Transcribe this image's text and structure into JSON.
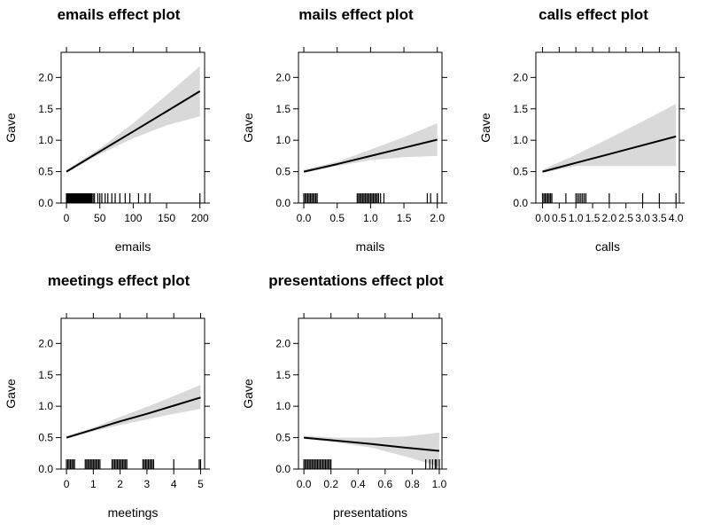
{
  "chart_data": [
    {
      "type": "line",
      "title": "emails effect plot",
      "xlabel": "emails",
      "ylabel": "Gave",
      "xlim": [
        -8,
        207
      ],
      "ylim": [
        0,
        2.4
      ],
      "xticks": [
        0,
        50,
        100,
        150,
        200
      ],
      "xtick_labels": [
        "0",
        "50",
        "100",
        "150",
        "200"
      ],
      "yticks": [
        0,
        0.5,
        1.0,
        1.5,
        2.0
      ],
      "ytick_labels": [
        "0.0",
        "0.5",
        "1.0",
        "1.5",
        "2.0"
      ],
      "x": [
        0,
        50,
        100,
        150,
        200
      ],
      "y": [
        0.5,
        0.82,
        1.14,
        1.46,
        1.78
      ],
      "lower": [
        0.48,
        0.78,
        1.03,
        1.24,
        1.38
      ],
      "upper": [
        0.53,
        0.87,
        1.27,
        1.72,
        2.18
      ],
      "rug": [
        0,
        1,
        2,
        3,
        4,
        5,
        6,
        7,
        8,
        9,
        10,
        11,
        12,
        13,
        14,
        15,
        16,
        17,
        18,
        19,
        20,
        21,
        22,
        23,
        24,
        25,
        26,
        27,
        28,
        29,
        30,
        31,
        32,
        33,
        34,
        35,
        36,
        37,
        38,
        40,
        42,
        47,
        50,
        53,
        58,
        62,
        68,
        73,
        80,
        88,
        95,
        108,
        118,
        125,
        200
      ]
    },
    {
      "type": "line",
      "title": "mails effect plot",
      "xlabel": "mails",
      "ylabel": "Gave",
      "xlim": [
        -0.08,
        2.07
      ],
      "ylim": [
        0,
        2.4
      ],
      "xticks": [
        0,
        0.5,
        1.0,
        1.5,
        2.0
      ],
      "xtick_labels": [
        "0.0",
        "0.5",
        "1.0",
        "1.5",
        "2.0"
      ],
      "yticks": [
        0,
        0.5,
        1.0,
        1.5,
        2.0
      ],
      "ytick_labels": [
        "0.0",
        "0.5",
        "1.0",
        "1.5",
        "2.0"
      ],
      "x": [
        0,
        0.5,
        1.0,
        1.5,
        2.0
      ],
      "y": [
        0.5,
        0.62,
        0.75,
        0.88,
        1.01
      ],
      "lower": [
        0.48,
        0.59,
        0.68,
        0.73,
        0.75
      ],
      "upper": [
        0.53,
        0.66,
        0.85,
        1.05,
        1.27
      ],
      "rug": [
        0,
        0.02,
        0.04,
        0.06,
        0.08,
        0.1,
        0.12,
        0.14,
        0.16,
        0.18,
        0.2,
        0.8,
        0.82,
        0.84,
        0.86,
        0.88,
        0.9,
        0.92,
        0.94,
        0.96,
        0.98,
        1.0,
        1.02,
        1.04,
        1.06,
        1.08,
        1.1,
        1.12,
        1.15,
        1.2,
        1.85,
        1.9,
        2.0
      ]
    },
    {
      "type": "line",
      "title": "calls effect plot",
      "xlabel": "calls",
      "ylabel": "Gave",
      "xlim": [
        -0.2,
        4.1
      ],
      "ylim": [
        0,
        2.4
      ],
      "xticks": [
        0,
        0.5,
        1.0,
        1.5,
        2.0,
        2.5,
        3.0,
        3.5,
        4.0
      ],
      "xtick_labels": [
        "0.0",
        "0.5",
        "1.0",
        "1.5",
        "2.0",
        "2.5",
        "3.0",
        "3.5",
        "4.0"
      ],
      "yticks": [
        0,
        0.5,
        1.0,
        1.5,
        2.0
      ],
      "ytick_labels": [
        "0.0",
        "0.5",
        "1.0",
        "1.5",
        "2.0"
      ],
      "x": [
        0,
        1.0,
        2.0,
        3.0,
        4.0
      ],
      "y": [
        0.5,
        0.64,
        0.78,
        0.92,
        1.06
      ],
      "lower": [
        0.48,
        0.59,
        0.59,
        0.59,
        0.59
      ],
      "upper": [
        0.53,
        0.77,
        1.03,
        1.3,
        1.58
      ],
      "rug": [
        0,
        0.04,
        0.08,
        0.12,
        0.16,
        0.2,
        0.24,
        0.28,
        0.7,
        1.0,
        1.05,
        1.1,
        1.15,
        1.2,
        1.25,
        1.3,
        2.0,
        3.0,
        3.5,
        4.0
      ]
    },
    {
      "type": "line",
      "title": "meetings effect plot",
      "xlabel": "meetings",
      "ylabel": "Gave",
      "xlim": [
        -0.2,
        5.15
      ],
      "ylim": [
        0,
        2.4
      ],
      "xticks": [
        0,
        1,
        2,
        3,
        4,
        5
      ],
      "xtick_labels": [
        "0",
        "1",
        "2",
        "3",
        "4",
        "5"
      ],
      "yticks": [
        0,
        0.5,
        1.0,
        1.5,
        2.0
      ],
      "ytick_labels": [
        "0.0",
        "0.5",
        "1.0",
        "1.5",
        "2.0"
      ],
      "x": [
        0,
        1,
        2,
        3,
        4,
        5
      ],
      "y": [
        0.5,
        0.63,
        0.76,
        0.88,
        1.01,
        1.14
      ],
      "lower": [
        0.48,
        0.6,
        0.7,
        0.79,
        0.88,
        0.96
      ],
      "upper": [
        0.53,
        0.66,
        0.83,
        0.99,
        1.16,
        1.34
      ],
      "rug": [
        0,
        0.05,
        0.1,
        0.15,
        0.2,
        0.25,
        0.3,
        0.7,
        0.75,
        0.8,
        0.85,
        0.9,
        0.95,
        1.0,
        1.05,
        1.1,
        1.15,
        1.2,
        1.25,
        1.7,
        1.75,
        1.8,
        1.85,
        1.9,
        1.95,
        2.0,
        2.05,
        2.1,
        2.15,
        2.2,
        2.25,
        2.85,
        2.9,
        2.95,
        3.0,
        3.05,
        3.1,
        3.15,
        3.2,
        3.25,
        4.0,
        4.95,
        5.0
      ]
    },
    {
      "type": "line",
      "title": "presentations effect plot",
      "xlabel": "presentations",
      "ylabel": "Gave",
      "xlim": [
        -0.04,
        1.02
      ],
      "ylim": [
        0,
        2.4
      ],
      "xticks": [
        0,
        0.2,
        0.4,
        0.6,
        0.8,
        1.0
      ],
      "xtick_labels": [
        "0.0",
        "0.2",
        "0.4",
        "0.6",
        "0.8",
        "1.0"
      ],
      "yticks": [
        0,
        0.5,
        1.0,
        1.5,
        2.0
      ],
      "ytick_labels": [
        "0.0",
        "0.5",
        "1.0",
        "1.5",
        "2.0"
      ],
      "x": [
        0,
        0.25,
        0.5,
        0.75,
        1.0
      ],
      "y": [
        0.5,
        0.45,
        0.4,
        0.34,
        0.29
      ],
      "lower": [
        0.48,
        0.42,
        0.34,
        0.2,
        0.04
      ],
      "upper": [
        0.53,
        0.5,
        0.5,
        0.52,
        0.58
      ],
      "rug": [
        0,
        0.01,
        0.02,
        0.03,
        0.04,
        0.05,
        0.06,
        0.07,
        0.08,
        0.09,
        0.1,
        0.11,
        0.12,
        0.13,
        0.14,
        0.15,
        0.16,
        0.17,
        0.18,
        0.19,
        0.2,
        0.9,
        0.93,
        0.95,
        0.97,
        0.98,
        1.0
      ]
    }
  ]
}
